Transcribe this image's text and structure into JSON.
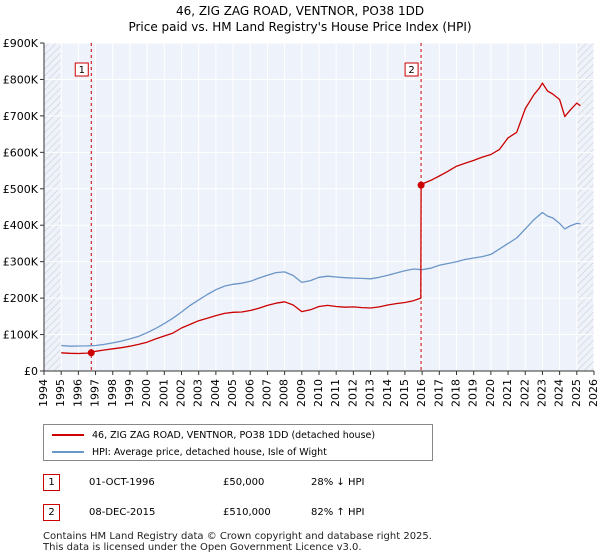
{
  "chart_data": {
    "type": "line",
    "title": "46, ZIG ZAG ROAD, VENTNOR, PO38 1DD",
    "subtitle": "Price paid vs. HM Land Registry's House Price Index (HPI)",
    "xlabel": "",
    "ylabel": "",
    "xlim": [
      1994,
      2026
    ],
    "ylim": [
      0,
      900000
    ],
    "y_ticks": [
      0,
      100000,
      200000,
      300000,
      400000,
      500000,
      600000,
      700000,
      800000,
      900000
    ],
    "y_tick_labels": [
      "£0",
      "£100K",
      "£200K",
      "£300K",
      "£400K",
      "£500K",
      "£600K",
      "£700K",
      "£800K",
      "£900K"
    ],
    "x_ticks": [
      1994,
      1995,
      1996,
      1997,
      1998,
      1999,
      2000,
      2001,
      2002,
      2003,
      2004,
      2005,
      2006,
      2007,
      2008,
      2009,
      2010,
      2011,
      2012,
      2013,
      2014,
      2015,
      2016,
      2017,
      2018,
      2019,
      2020,
      2021,
      2022,
      2023,
      2024,
      2025,
      2026
    ],
    "x_tick_labels": [
      "1994",
      "1995",
      "1996",
      "1997",
      "1998",
      "1999",
      "2000",
      "2001",
      "2002",
      "2003",
      "2004",
      "2005",
      "2006",
      "2007",
      "2008",
      "2009",
      "2010",
      "2011",
      "2012",
      "2013",
      "2014",
      "2015",
      "2016",
      "2017",
      "2018",
      "2019",
      "2020",
      "2021",
      "2022",
      "2023",
      "2024",
      "2025",
      "2026"
    ],
    "grid": true,
    "series": [
      {
        "name": "46, ZIG ZAG ROAD, VENTNOR, PO38 1DD (detached house)",
        "color": "#cc0000",
        "x": [
          1995.0,
          1995.5,
          1996.0,
          1996.5,
          1996.75,
          1997.0,
          1997.5,
          1998.0,
          1998.5,
          1999.0,
          1999.5,
          2000.0,
          2000.5,
          2001.0,
          2001.5,
          2002.0,
          2002.5,
          2003.0,
          2003.5,
          2004.0,
          2004.5,
          2005.0,
          2005.5,
          2006.0,
          2006.5,
          2007.0,
          2007.5,
          2008.0,
          2008.5,
          2009.0,
          2009.5,
          2010.0,
          2010.5,
          2011.0,
          2011.5,
          2012.0,
          2012.5,
          2013.0,
          2013.5,
          2014.0,
          2014.5,
          2015.0,
          2015.5,
          2015.92,
          2015.94,
          2016.0,
          2016.5,
          2017.0,
          2017.5,
          2018.0,
          2018.5,
          2019.0,
          2019.5,
          2020.0,
          2020.5,
          2021.0,
          2021.5,
          2022.0,
          2022.5,
          2022.8,
          2023.0,
          2023.3,
          2023.6,
          2024.0,
          2024.3,
          2024.6,
          2025.0,
          2025.2
        ],
        "values": [
          50000,
          48500,
          48000,
          49000,
          50000,
          54000,
          57500,
          61000,
          64000,
          68000,
          73000,
          79000,
          88000,
          96000,
          104000,
          118000,
          128000,
          138000,
          145000,
          152000,
          158000,
          161000,
          162000,
          166000,
          172000,
          180000,
          186000,
          190000,
          181000,
          163000,
          168000,
          177000,
          180000,
          177000,
          175000,
          176000,
          174000,
          173000,
          176000,
          181000,
          185000,
          188000,
          193000,
          200000,
          510000,
          513000,
          523000,
          535000,
          548000,
          562000,
          570000,
          578000,
          587000,
          594000,
          608000,
          640000,
          655000,
          720000,
          758000,
          775000,
          790000,
          768000,
          760000,
          745000,
          698000,
          715000,
          735000,
          728000
        ]
      },
      {
        "name": "HPI: Average price, detached house, Isle of Wight",
        "color": "#6b96c8",
        "x": [
          1995.0,
          1995.5,
          1996.0,
          1996.5,
          1997.0,
          1997.5,
          1998.0,
          1998.5,
          1999.0,
          1999.5,
          2000.0,
          2000.5,
          2001.0,
          2001.5,
          2002.0,
          2002.5,
          2003.0,
          2003.5,
          2004.0,
          2004.5,
          2005.0,
          2005.5,
          2006.0,
          2006.5,
          2007.0,
          2007.5,
          2008.0,
          2008.5,
          2009.0,
          2009.5,
          2010.0,
          2010.5,
          2011.0,
          2011.5,
          2012.0,
          2012.5,
          2013.0,
          2013.5,
          2014.0,
          2014.5,
          2015.0,
          2015.5,
          2016.0,
          2016.5,
          2017.0,
          2017.5,
          2018.0,
          2018.5,
          2019.0,
          2019.5,
          2020.0,
          2020.5,
          2021.0,
          2021.5,
          2022.0,
          2022.5,
          2023.0,
          2023.3,
          2023.6,
          2024.0,
          2024.3,
          2024.6,
          2025.0,
          2025.2
        ],
        "values": [
          70000,
          68000,
          68500,
          69000,
          70000,
          73000,
          77000,
          82000,
          88000,
          95000,
          105000,
          117000,
          130000,
          145000,
          162000,
          180000,
          195000,
          210000,
          223000,
          233000,
          238000,
          241000,
          246000,
          255000,
          263000,
          270000,
          272000,
          262000,
          243000,
          248000,
          257000,
          260000,
          258000,
          256000,
          255000,
          254000,
          253000,
          257000,
          263000,
          269000,
          275000,
          280000,
          278000,
          282000,
          290000,
          295000,
          300000,
          306000,
          310000,
          314000,
          320000,
          335000,
          350000,
          365000,
          390000,
          415000,
          435000,
          425000,
          420000,
          405000,
          390000,
          398000,
          405000,
          404000
        ]
      }
    ],
    "annotations": [
      {
        "label": "1",
        "x": 1996.75,
        "y": 50000
      },
      {
        "label": "2",
        "x": 2015.94,
        "y": 510000
      }
    ],
    "hatched_ranges": [
      [
        1994,
        1995
      ],
      [
        2025.0,
        2026
      ]
    ]
  },
  "legend": {
    "items": [
      {
        "label": "46, ZIG ZAG ROAD, VENTNOR, PO38 1DD (detached house)",
        "color": "#cc0000"
      },
      {
        "label": "HPI: Average price, detached house, Isle of Wight",
        "color": "#6b96c8"
      }
    ]
  },
  "sales": [
    {
      "num": "1",
      "date": "01-OCT-1996",
      "price": "£50,000",
      "hpi": "28% ↓ HPI"
    },
    {
      "num": "2",
      "date": "08-DEC-2015",
      "price": "£510,000",
      "hpi": "82% ↑ HPI"
    }
  ],
  "footer": {
    "line1": "Contains HM Land Registry data © Crown copyright and database right 2025.",
    "line2": "This data is licensed under the Open Government Licence v3.0."
  }
}
